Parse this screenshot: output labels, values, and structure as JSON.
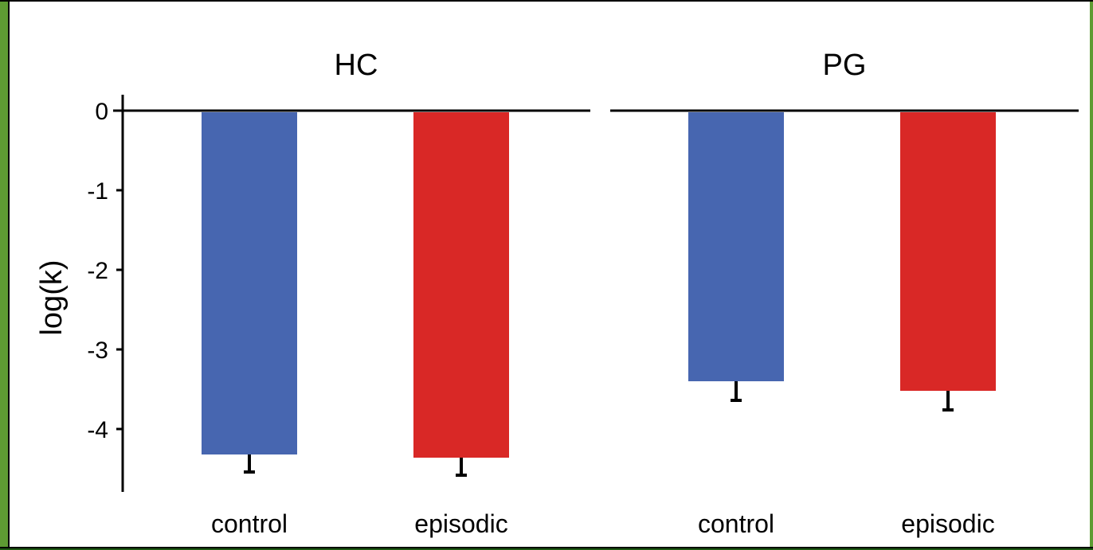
{
  "chart_data": {
    "type": "bar",
    "ylabel": "log(k)",
    "ylim": [
      -4.8,
      0.2
    ],
    "yticks": [
      0,
      -1,
      -2,
      -3,
      -4
    ],
    "colors": {
      "control": "#4766b0",
      "episodic": "#d92826"
    },
    "panels": [
      {
        "title": "HC",
        "categories": [
          "control",
          "episodic"
        ],
        "values": [
          -4.32,
          -4.36
        ],
        "errors": [
          0.22,
          0.22
        ]
      },
      {
        "title": "PG",
        "categories": [
          "control",
          "episodic"
        ],
        "values": [
          -3.4,
          -3.52
        ],
        "errors": [
          0.24,
          0.24
        ]
      }
    ]
  }
}
